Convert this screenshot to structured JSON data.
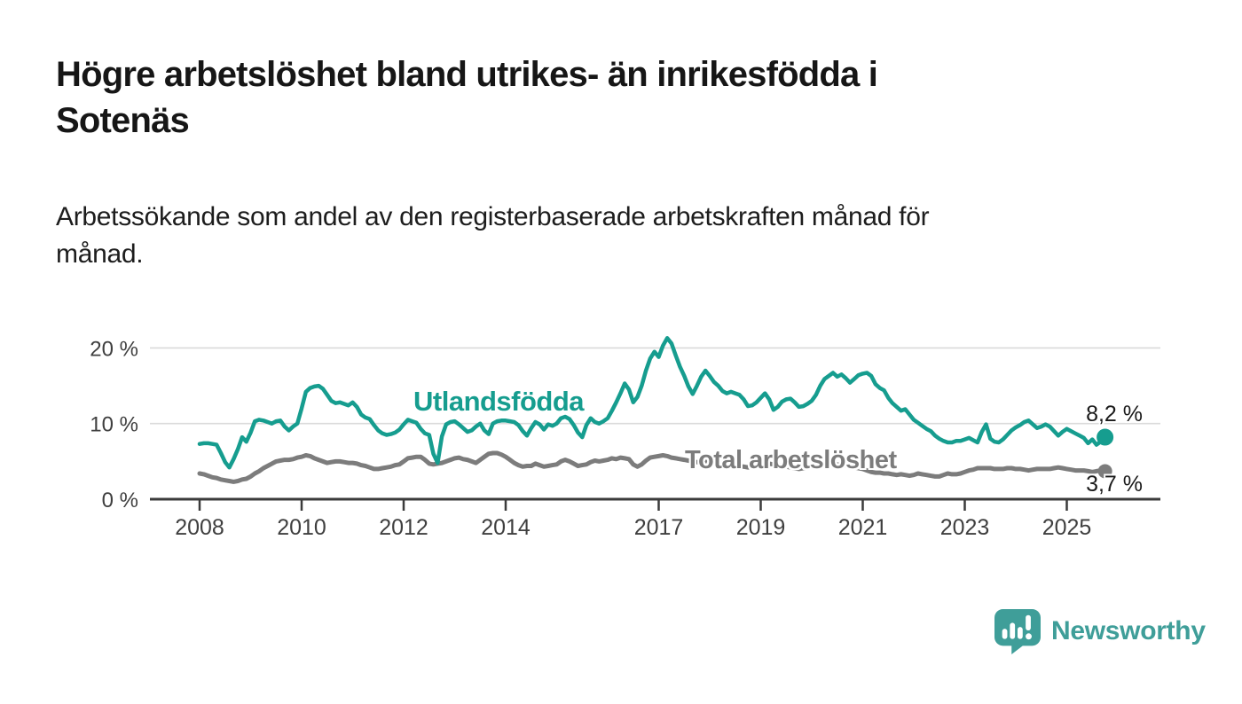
{
  "page": {
    "background": "#ffffff",
    "title_line1": "Högre arbetslöshet bland utrikes- än inrikesfödda i",
    "title_line2": "Sotenäs",
    "subtitle_line1": "Arbetssökande som andel av den registerbaserade arbetskraften månad för",
    "subtitle_line2": "månad."
  },
  "chart_data": {
    "type": "line",
    "title": "Högre arbetslöshet bland utrikes- än inrikesfödda i Sotenäs",
    "subtitle": "Arbetssökande som andel av den registerbaserade arbetskraften månad för månad.",
    "x_unit": "month",
    "x_start": "2008-01",
    "x_end": "2025-10",
    "x_tick_years": [
      2008,
      2010,
      2012,
      2014,
      2017,
      2019,
      2021,
      2023,
      2025
    ],
    "x_tick_labels": [
      "2008",
      "2010",
      "2012",
      "2014",
      "2017",
      "2019",
      "2021",
      "2023",
      "2025"
    ],
    "y_ticks": [
      0,
      10,
      20
    ],
    "y_tick_labels": [
      "0 %",
      "10 %",
      "20 %"
    ],
    "ylim": [
      0,
      22.5
    ],
    "grid": "horizontal",
    "gridline_color": "#dadada",
    "axis_color": "#3b3b3b",
    "legend_position": "inline-annotations",
    "series": [
      {
        "name": "Utlandsfödda",
        "color": "#169d8f",
        "end_label": "8,2 %",
        "end_value": 8.2,
        "values": [
          7.3,
          7.4,
          7.4,
          7.3,
          7.2,
          6.1,
          4.9,
          4.2,
          5.3,
          6.6,
          8.2,
          7.6,
          8.8,
          10.3,
          10.5,
          10.4,
          10.2,
          10.0,
          10.3,
          10.4,
          9.6,
          9.1,
          9.6,
          10.0,
          12.0,
          14.2,
          14.7,
          14.9,
          15.0,
          14.6,
          13.8,
          13.0,
          12.7,
          12.8,
          12.6,
          12.4,
          12.8,
          12.2,
          11.2,
          10.8,
          10.6,
          9.8,
          9.1,
          8.7,
          8.5,
          8.6,
          8.8,
          9.2,
          9.9,
          10.5,
          10.3,
          10.1,
          9.3,
          8.7,
          8.5,
          6.0,
          4.8,
          8.3,
          9.9,
          10.2,
          10.3,
          9.9,
          9.4,
          8.9,
          9.1,
          9.6,
          10.0,
          9.1,
          8.6,
          10.0,
          10.3,
          10.4,
          10.4,
          10.3,
          10.2,
          9.8,
          9.0,
          8.4,
          9.4,
          10.2,
          9.9,
          9.2,
          9.9,
          9.7,
          10.0,
          10.7,
          10.9,
          10.6,
          9.8,
          8.8,
          8.2,
          9.8,
          10.7,
          10.2,
          10.0,
          10.3,
          10.7,
          11.7,
          12.8,
          14.0,
          15.3,
          14.5,
          12.8,
          13.5,
          15.0,
          17.0,
          18.6,
          19.5,
          18.8,
          20.3,
          21.3,
          20.6,
          19.0,
          17.5,
          16.3,
          14.9,
          13.9,
          15.0,
          16.2,
          17.0,
          16.3,
          15.5,
          15.0,
          14.3,
          14.0,
          14.2,
          14.0,
          13.8,
          13.2,
          12.3,
          12.4,
          12.8,
          13.4,
          14.0,
          13.2,
          11.8,
          12.2,
          12.9,
          13.2,
          13.3,
          12.8,
          12.2,
          12.3,
          12.6,
          13.0,
          13.8,
          15.0,
          15.9,
          16.3,
          16.7,
          16.2,
          16.5,
          16.0,
          15.4,
          15.9,
          16.4,
          16.6,
          16.7,
          16.3,
          15.2,
          14.7,
          14.4,
          13.4,
          12.7,
          12.2,
          11.7,
          11.9,
          11.2,
          10.5,
          10.1,
          9.7,
          9.3,
          9.0,
          8.4,
          8.0,
          7.7,
          7.5,
          7.5,
          7.7,
          7.7,
          7.9,
          8.1,
          7.8,
          7.5,
          8.9,
          9.9,
          8.0,
          7.6,
          7.5,
          7.9,
          8.5,
          9.1,
          9.5,
          9.8,
          10.2,
          10.4,
          9.9,
          9.4,
          9.6,
          9.9,
          9.6,
          9.0,
          8.4,
          8.9,
          9.3,
          9.0,
          8.7,
          8.4,
          8.1,
          7.4,
          7.9,
          7.2,
          7.6,
          8.2
        ]
      },
      {
        "name": "Total arbetslöshet",
        "color": "#7c7c7c",
        "end_label": "3,7 %",
        "end_value": 3.7,
        "values": [
          3.4,
          3.3,
          3.1,
          2.9,
          2.8,
          2.6,
          2.5,
          2.4,
          2.3,
          2.4,
          2.6,
          2.7,
          3.0,
          3.4,
          3.7,
          4.1,
          4.4,
          4.7,
          5.0,
          5.1,
          5.2,
          5.2,
          5.3,
          5.5,
          5.6,
          5.8,
          5.7,
          5.4,
          5.2,
          5.0,
          4.8,
          4.9,
          5.0,
          5.0,
          4.9,
          4.8,
          4.8,
          4.7,
          4.5,
          4.4,
          4.2,
          4.0,
          4.0,
          4.1,
          4.2,
          4.3,
          4.5,
          4.6,
          5.0,
          5.4,
          5.5,
          5.6,
          5.6,
          5.2,
          4.7,
          4.6,
          4.7,
          4.8,
          5.0,
          5.2,
          5.4,
          5.5,
          5.3,
          5.2,
          5.0,
          4.8,
          5.2,
          5.6,
          6.0,
          6.1,
          6.1,
          5.9,
          5.6,
          5.2,
          4.8,
          4.5,
          4.3,
          4.4,
          4.4,
          4.7,
          4.5,
          4.3,
          4.4,
          4.5,
          4.6,
          5.0,
          5.2,
          5.0,
          4.7,
          4.4,
          4.5,
          4.6,
          4.9,
          5.1,
          5.0,
          5.1,
          5.2,
          5.4,
          5.3,
          5.5,
          5.4,
          5.3,
          4.6,
          4.3,
          4.6,
          5.1,
          5.5,
          5.6,
          5.7,
          5.8,
          5.7,
          5.5,
          5.4,
          5.3,
          5.2,
          5.1,
          5.0,
          4.9,
          4.9,
          5.0,
          5.0,
          4.9,
          4.8,
          4.7,
          4.6,
          4.5,
          4.4,
          4.3,
          4.3,
          4.2,
          4.3,
          4.4,
          4.5,
          4.6,
          4.7,
          4.6,
          4.5,
          4.4,
          4.3,
          4.2,
          4.1,
          4.0,
          4.1,
          4.2,
          4.3,
          4.5,
          4.7,
          4.8,
          4.8,
          4.7,
          4.6,
          4.5,
          4.4,
          4.3,
          4.2,
          4.1,
          4.0,
          3.8,
          3.6,
          3.5,
          3.5,
          3.4,
          3.4,
          3.3,
          3.2,
          3.3,
          3.2,
          3.1,
          3.2,
          3.4,
          3.3,
          3.2,
          3.1,
          3.0,
          3.0,
          3.2,
          3.4,
          3.3,
          3.3,
          3.4,
          3.6,
          3.8,
          3.9,
          4.1,
          4.1,
          4.1,
          4.1,
          4.0,
          4.0,
          4.0,
          4.1,
          4.1,
          4.0,
          4.0,
          3.9,
          3.8,
          3.9,
          4.0,
          4.0,
          4.0,
          4.0,
          4.1,
          4.2,
          4.1,
          4.0,
          3.9,
          3.8,
          3.8,
          3.8,
          3.7,
          3.6,
          3.7,
          3.8,
          3.7
        ]
      }
    ]
  },
  "branding": {
    "logo_text": "Newsworthy",
    "logo_color": "#3f9e99",
    "logo_icon": "newsworthy-speech-bubble-bar-chart-icon"
  }
}
